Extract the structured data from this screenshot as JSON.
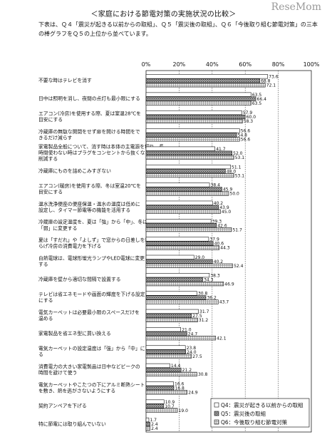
{
  "logo": "ReseMom",
  "title": "＜家庭における節電対策の実施状況の比較＞",
  "subtitle": "下表は、Ｑ４「震災が起きる以前からの取組」、Ｑ５「震災後の取組」、Ｑ６「今後取り組む節電対策」の三本の棒グラフをＱ５の上位から並べています。",
  "chart_data": {
    "type": "bar",
    "orientation": "horizontal",
    "xlim": [
      0,
      100
    ],
    "x_ticks": [
      "0%",
      "20%",
      "40%",
      "60%",
      "80%",
      "100%"
    ],
    "grid": true,
    "legend_position": "bottom-right",
    "categories": [
      [
        "不要な時はテレビを消す"
      ],
      [
        "日中は照明を消し、夜間の点灯も最小限にする"
      ],
      [
        "エアコン(冷房)を使用する際、夏は室温28℃を",
        "目安にする"
      ],
      [
        "冷蔵庫の無駄な開閉をせず扉を開ける時間をで",
        "きるだけ減らす"
      ],
      [
        "家電製品全般について、消す時は本体の主電源を切り、長",
        "時間使わない時はプラグをコンセントから抜くなど待機電力を",
        "削減する"
      ],
      [
        "冷蔵庫にものを詰めこみすぎない"
      ],
      [
        "エアコン(暖房)を使用する際、冬は室温20℃を",
        "目安にする"
      ],
      [
        "温水洗浄便座の便座保温・温水の温度は低めに",
        "設定し、タイマー節電等の機能を活用する"
      ],
      [
        "冷蔵庫の設定温度を、夏は「強」から「中」、冬は",
        "「弱」に変更する"
      ],
      [
        "夏は「すだれ」や「よしず」で窓からの日差しを和",
        "らげ冷房の消費電力を下げる"
      ],
      [
        "白熱電球は、電球形蛍光ランプやLED電球に変更",
        "する"
      ],
      [
        "冷蔵庫を壁から適切な間隔で設置する"
      ],
      [
        "テレビは省エネモードや画面の輝度を下げる設定",
        "にする"
      ],
      [
        "電気カーペットは必要最小限のスペースだけを",
        "温める"
      ],
      [
        "家電製品を省エネ型に買い換える"
      ],
      [
        "電気カーペットの設定温度は「強」から「中」にす",
        "る"
      ],
      [
        "消費電力の大きい家電製品は日中などピークの",
        "時間を避けて使う"
      ],
      [
        "電気カーペットやこたつの下にアルミ断熱シート",
        "を敷き、熱を逃がさないようにする"
      ],
      [
        "契約アンペアを下げる"
      ],
      [
        "特に節電には取り組んでいない"
      ]
    ],
    "series": [
      {
        "name": "Q4：震災が起きる以前からの取組",
        "color": "#ffffff",
        "pattern": "white",
        "values": [
          73.6,
          63.5,
          57.9,
          56.6,
          41.7,
          51.1,
          38.4,
          40.2,
          39.3,
          37.9,
          29.0,
          38.3,
          30.8,
          31.7,
          21.0,
          23.8,
          14.4,
          16.6,
          10.9,
          1.7
        ]
      },
      {
        "name": "Q5：震災後の取組",
        "color": "#b5b5b5",
        "pattern": "dots",
        "values": [
          68.8,
          66.4,
          60.0,
          54.8,
          52.0,
          48.0,
          45.9,
          43.9,
          42.6,
          40.6,
          40.2,
          34.3,
          36.2,
          27.5,
          24.7,
          24.0,
          21.2,
          16.8,
          10.7,
          2.4
        ]
      },
      {
        "name": "Q6：今後取り組む節電対策",
        "color": "#dcdcdc",
        "pattern": "grid",
        "values": [
          72.1,
          63.5,
          58.3,
          56.6,
          53.1,
          53.1,
          50.0,
          45.0,
          51.7,
          44.3,
          52.4,
          46.9,
          43.7,
          31.2,
          42.1,
          27.5,
          30.8,
          24.9,
          19.0,
          2.4
        ]
      }
    ]
  }
}
